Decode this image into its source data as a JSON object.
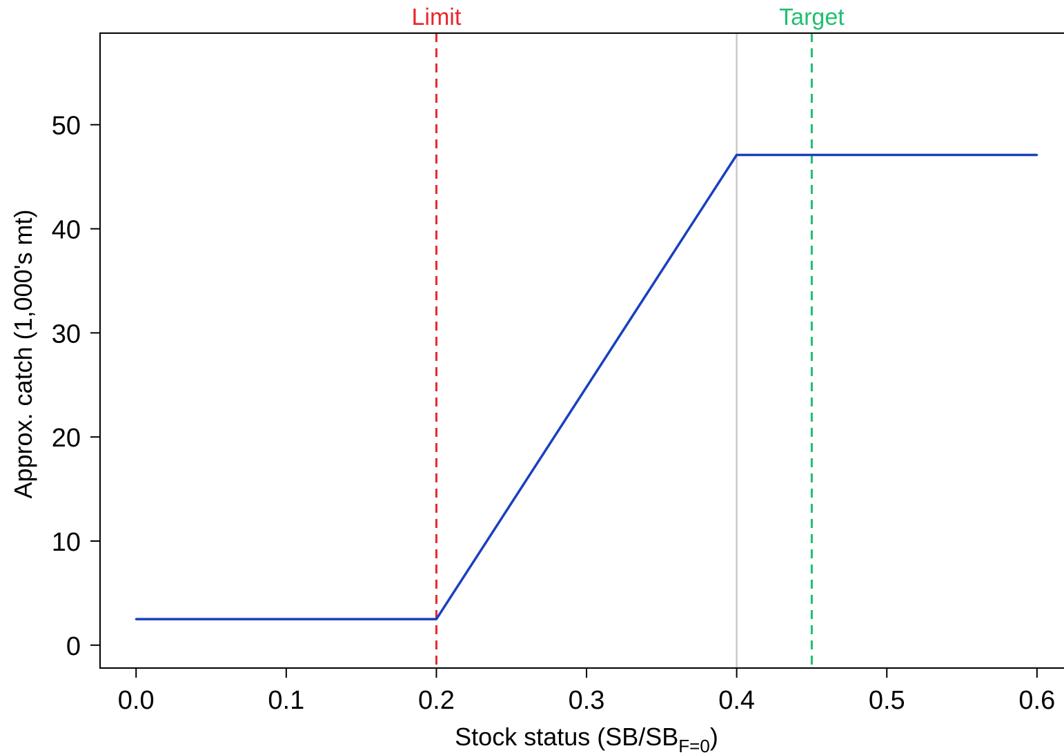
{
  "chart_data": {
    "type": "line",
    "xlabel": "Stock status (SB/SB",
    "xlabel_subscript": "F=0",
    "xlabel_suffix": ")",
    "ylabel": "Approx. catch (1,000's mt)",
    "xlim": [
      -0.024,
      0.618
    ],
    "ylim": [
      -2.2,
      58.8
    ],
    "x_ticks": [
      0.0,
      0.1,
      0.2,
      0.3,
      0.4,
      0.5,
      0.6
    ],
    "x_tick_labels": [
      "0.0",
      "0.1",
      "0.2",
      "0.3",
      "0.4",
      "0.5",
      "0.6"
    ],
    "y_ticks": [
      0,
      10,
      20,
      30,
      40,
      50
    ],
    "y_tick_labels": [
      "0",
      "10",
      "20",
      "30",
      "40",
      "50"
    ],
    "grid": false,
    "series": [
      {
        "color": "#1a3fbf",
        "points": [
          {
            "x": 0.0,
            "y": 2.5
          },
          {
            "x": 0.2,
            "y": 2.5
          },
          {
            "x": 0.4,
            "y": 47.1
          },
          {
            "x": 0.6,
            "y": 47.1
          }
        ]
      }
    ],
    "reference_lines": [
      {
        "x": 0.2,
        "label": "Limit",
        "color": "#e8262a",
        "style": "dashed"
      },
      {
        "x": 0.4,
        "label": "",
        "color": "#c8c8c8",
        "style": "solid"
      },
      {
        "x": 0.45,
        "label": "Target",
        "color": "#1fbf6f",
        "style": "dashed"
      }
    ]
  }
}
